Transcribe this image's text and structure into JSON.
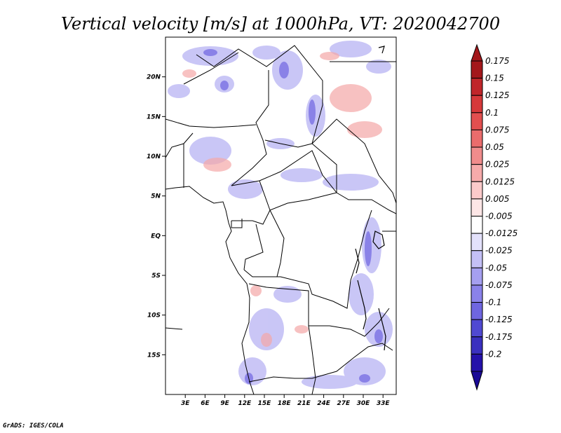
{
  "title": "Vertical velocity [m/s] at 1000hPa, VT: 2020042700",
  "credit": "GrADS: IGES/COLA",
  "map": {
    "lon_range": [
      0,
      35
    ],
    "lat_range": [
      -20,
      25
    ],
    "lat_ticks": [
      {
        "value": 20,
        "label": "20N"
      },
      {
        "value": 15,
        "label": "15N"
      },
      {
        "value": 10,
        "label": "10N"
      },
      {
        "value": 5,
        "label": "5N"
      },
      {
        "value": 0,
        "label": "EQ"
      },
      {
        "value": -5,
        "label": "5S"
      },
      {
        "value": -10,
        "label": "10S"
      },
      {
        "value": -15,
        "label": "15S"
      }
    ],
    "lon_ticks": [
      {
        "value": 3,
        "label": "3E"
      },
      {
        "value": 6,
        "label": "6E"
      },
      {
        "value": 9,
        "label": "9E"
      },
      {
        "value": 12,
        "label": "12E"
      },
      {
        "value": 15,
        "label": "15E"
      },
      {
        "value": 18,
        "label": "18E"
      },
      {
        "value": 21,
        "label": "21E"
      },
      {
        "value": 24,
        "label": "24E"
      },
      {
        "value": 27,
        "label": "27E"
      },
      {
        "value": 30,
        "label": "30E"
      },
      {
        "value": 33,
        "label": "33E"
      }
    ]
  },
  "colorbar": {
    "levels": [
      {
        "label": "0.175",
        "color": "#a3171b"
      },
      {
        "label": "0.15",
        "color": "#c0262a"
      },
      {
        "label": "0.125",
        "color": "#d6393a"
      },
      {
        "label": "0.1",
        "color": "#e24f4f"
      },
      {
        "label": "0.075",
        "color": "#ea6c6c"
      },
      {
        "label": "0.05",
        "color": "#f08c8c"
      },
      {
        "label": "0.025",
        "color": "#f6aaaa"
      },
      {
        "label": "0.0125",
        "color": "#fbcaca"
      },
      {
        "label": "0.005",
        "color": "#fde6e6"
      },
      {
        "label": "-0.005",
        "color": "#ffffff"
      },
      {
        "label": "-0.0125",
        "color": "#e3e1fb"
      },
      {
        "label": "-0.025",
        "color": "#c4c0f6"
      },
      {
        "label": "-0.05",
        "color": "#a59ff0"
      },
      {
        "label": "-0.075",
        "color": "#8a82ea"
      },
      {
        "label": "-0.1",
        "color": "#6f66e0"
      },
      {
        "label": "-0.125",
        "color": "#5049d2"
      },
      {
        "label": "-0.175",
        "color": "#3a30bf"
      },
      {
        "label": "-0.2",
        "color": "#2411aa"
      }
    ],
    "bottom_color": "#1a0a96"
  }
}
